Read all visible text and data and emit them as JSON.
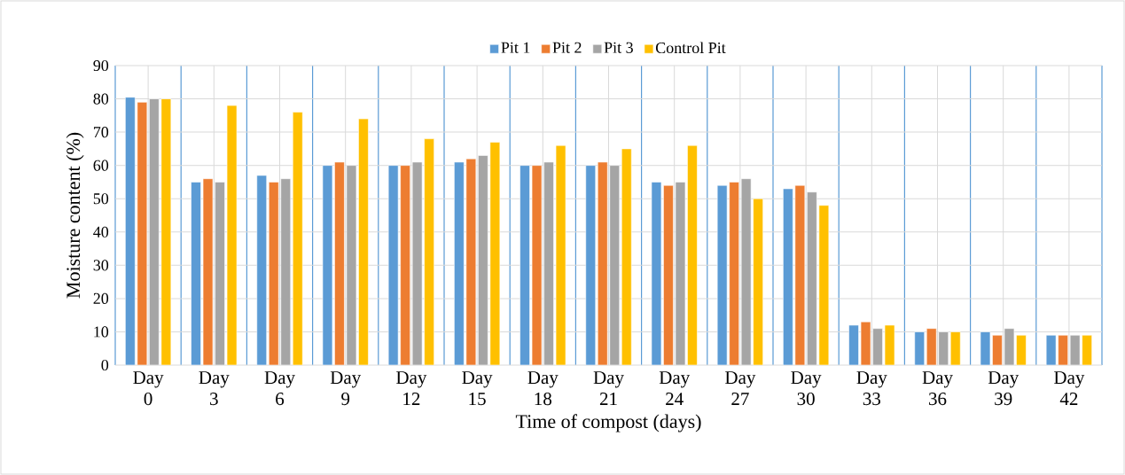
{
  "chart_data": {
    "type": "bar",
    "xlabel": "Time of compost (days)",
    "ylabel": "Moisture content  (%)",
    "categories": [
      "Day 0",
      "Day 3",
      "Day 6",
      "Day 9",
      "Day 12",
      "Day 15",
      "Day 18",
      "Day 21",
      "Day 24",
      "Day 27",
      "Day 30",
      "Day 33",
      "Day 36",
      "Day 39",
      "Day 42"
    ],
    "series": [
      {
        "name": "Pit 1",
        "color": "#5b9bd5",
        "values": [
          80.5,
          55,
          57,
          60,
          60,
          61,
          60,
          60,
          55,
          54,
          53,
          12,
          10,
          10,
          9
        ]
      },
      {
        "name": "Pit 2",
        "color": "#ed7d31",
        "values": [
          79,
          56,
          55,
          61,
          60,
          62,
          60,
          61,
          54,
          55,
          54,
          13,
          11,
          9,
          9
        ]
      },
      {
        "name": "Pit 3",
        "color": "#a5a5a5",
        "values": [
          80,
          55,
          56,
          60,
          61,
          63,
          61,
          60,
          55,
          56,
          52,
          11,
          10,
          11,
          9
        ]
      },
      {
        "name": "Control Pit",
        "color": "#ffc000",
        "values": [
          80,
          78,
          76,
          74,
          68,
          67,
          66,
          65,
          66,
          50,
          48,
          12,
          10,
          9,
          9
        ]
      }
    ],
    "ylim": [
      0,
      90
    ],
    "yticks": [
      0,
      10,
      20,
      30,
      40,
      50,
      60,
      70,
      80,
      90
    ],
    "grid": true,
    "legend": "top"
  }
}
